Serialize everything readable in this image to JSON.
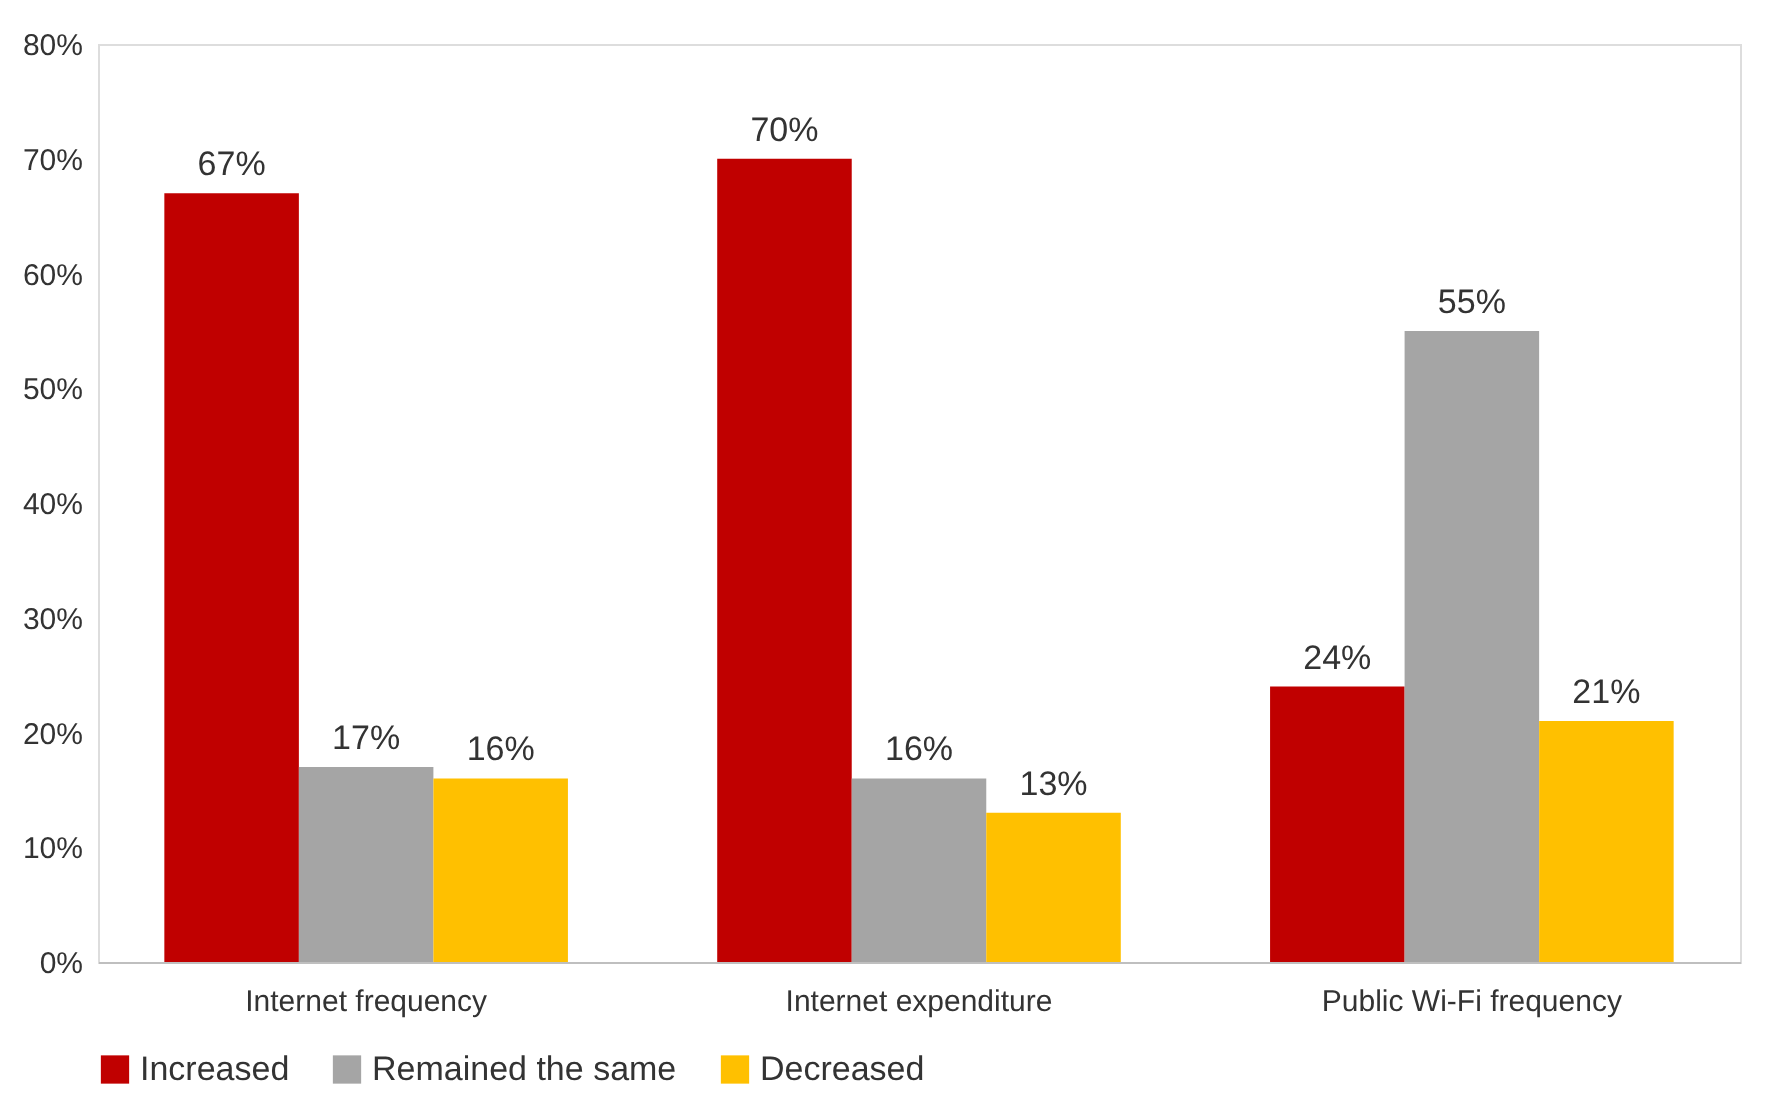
{
  "chart_data": {
    "type": "bar",
    "categories": [
      "Internet frequency",
      "Internet expenditure",
      "Public Wi-Fi frequency"
    ],
    "series": [
      {
        "name": "Increased",
        "color": "#c00000",
        "values": [
          67,
          70,
          24
        ],
        "value_labels": [
          "67%",
          "70%",
          "24%"
        ]
      },
      {
        "name": "Remained the same",
        "color": "#a5a5a5",
        "values": [
          17,
          16,
          55
        ],
        "value_labels": [
          "17%",
          "16%",
          "55%"
        ]
      },
      {
        "name": "Decreased",
        "color": "#ffc000",
        "values": [
          16,
          13,
          21
        ],
        "value_labels": [
          "16%",
          "13%",
          "21%"
        ]
      }
    ],
    "ylim": [
      0,
      80
    ],
    "yticks": [
      {
        "value": 0,
        "label": "0%"
      },
      {
        "value": 10,
        "label": "10%"
      },
      {
        "value": 20,
        "label": "20%"
      },
      {
        "value": 30,
        "label": "30%"
      },
      {
        "value": 40,
        "label": "40%"
      },
      {
        "value": 50,
        "label": "50%"
      },
      {
        "value": 60,
        "label": "60%"
      },
      {
        "value": 70,
        "label": "70%"
      },
      {
        "value": 80,
        "label": "80%"
      }
    ],
    "grid": false,
    "legend": "bottom"
  }
}
